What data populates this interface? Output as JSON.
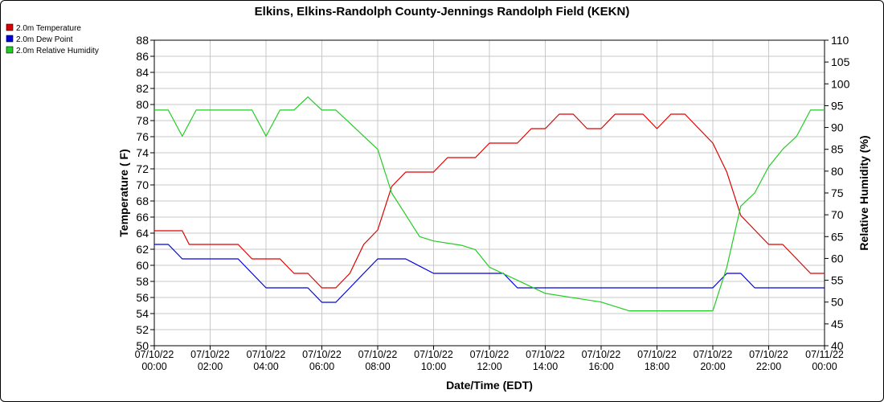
{
  "chart_data": {
    "type": "line",
    "title": "Elkins, Elkins-Randolph County-Jennings Randolph Field (KEKN)",
    "xlabel": "Date/Time (EDT)",
    "ylabel": "Temperature ( F)",
    "y2label": "Relative Humidity (%)",
    "xlim": [
      "07/10/22 00:00",
      "07/11/22 00:00"
    ],
    "ylim": [
      50,
      88
    ],
    "y2lim": [
      40,
      110
    ],
    "yticks": [
      "50",
      "52",
      "54",
      "56",
      "58",
      "60",
      "62",
      "64",
      "66",
      "68",
      "70",
      "72",
      "74",
      "76",
      "78",
      "80",
      "82",
      "84",
      "86",
      "88"
    ],
    "y2ticks": [
      "40",
      "45",
      "50",
      "55",
      "60",
      "65",
      "70",
      "75",
      "80",
      "85",
      "90",
      "95",
      "100",
      "105",
      "110"
    ],
    "xticks": [
      {
        "date": "07/10/22",
        "time": "00:00"
      },
      {
        "date": "07/10/22",
        "time": "02:00"
      },
      {
        "date": "07/10/22",
        "time": "04:00"
      },
      {
        "date": "07/10/22",
        "time": "06:00"
      },
      {
        "date": "07/10/22",
        "time": "08:00"
      },
      {
        "date": "07/10/22",
        "time": "10:00"
      },
      {
        "date": "07/10/22",
        "time": "12:00"
      },
      {
        "date": "07/10/22",
        "time": "14:00"
      },
      {
        "date": "07/10/22",
        "time": "16:00"
      },
      {
        "date": "07/10/22",
        "time": "18:00"
      },
      {
        "date": "07/10/22",
        "time": "20:00"
      },
      {
        "date": "07/10/22",
        "time": "22:00"
      },
      {
        "date": "07/11/22",
        "time": "00:00"
      }
    ],
    "grid": true,
    "legend_position": "top-left",
    "series": [
      {
        "name": "2.0m Temperature",
        "axis": "left",
        "color": "#dd0000",
        "x": [
          "07/10/22 00:00",
          "07/10/22 01:00",
          "07/10/22 01:15",
          "07/10/22 02:00",
          "07/10/22 03:00",
          "07/10/22 03:30",
          "07/10/22 04:00",
          "07/10/22 04:30",
          "07/10/22 05:00",
          "07/10/22 05:30",
          "07/10/22 06:00",
          "07/10/22 06:30",
          "07/10/22 07:00",
          "07/10/22 07:30",
          "07/10/22 08:00",
          "07/10/22 08:30",
          "07/10/22 09:00",
          "07/10/22 09:30",
          "07/10/22 10:00",
          "07/10/22 10:30",
          "07/10/22 11:00",
          "07/10/22 11:30",
          "07/10/22 12:00",
          "07/10/22 12:30",
          "07/10/22 13:00",
          "07/10/22 13:30",
          "07/10/22 14:00",
          "07/10/22 14:30",
          "07/10/22 15:00",
          "07/10/22 15:30",
          "07/10/22 16:00",
          "07/10/22 16:30",
          "07/10/22 17:00",
          "07/10/22 17:30",
          "07/10/22 18:00",
          "07/10/22 18:30",
          "07/10/22 19:00",
          "07/10/22 19:30",
          "07/10/22 20:00",
          "07/10/22 20:30",
          "07/10/22 21:00",
          "07/10/22 21:30",
          "07/10/22 22:00",
          "07/10/22 22:30",
          "07/10/22 23:00",
          "07/10/22 23:30",
          "07/11/22 00:00"
        ],
        "values": [
          64.3,
          64.3,
          62.6,
          62.6,
          62.6,
          60.8,
          60.8,
          60.8,
          59.0,
          59.0,
          57.2,
          57.2,
          59.0,
          62.6,
          64.4,
          69.8,
          71.6,
          71.6,
          71.6,
          73.4,
          73.4,
          73.4,
          75.2,
          75.2,
          75.2,
          77.0,
          77.0,
          78.8,
          78.8,
          77.0,
          77.0,
          78.8,
          78.8,
          78.8,
          77.0,
          78.8,
          78.8,
          77.0,
          75.2,
          71.6,
          66.2,
          64.4,
          62.6,
          62.6,
          60.8,
          59.0,
          59.0
        ]
      },
      {
        "name": "2.0m Dew Point",
        "axis": "left",
        "color": "#0000dd",
        "x": [
          "07/10/22 00:00",
          "07/10/22 00:30",
          "07/10/22 01:00",
          "07/10/22 01:30",
          "07/10/22 02:00",
          "07/10/22 03:00",
          "07/10/22 03:30",
          "07/10/22 04:00",
          "07/10/22 05:00",
          "07/10/22 05:30",
          "07/10/22 06:00",
          "07/10/22 06:30",
          "07/10/22 07:00",
          "07/10/22 07:30",
          "07/10/22 08:00",
          "07/10/22 08:30",
          "07/10/22 09:00",
          "07/10/22 10:00",
          "07/10/22 11:00",
          "07/10/22 12:00",
          "07/10/22 12:30",
          "07/10/22 13:00",
          "07/10/22 14:00",
          "07/10/22 15:00",
          "07/10/22 16:00",
          "07/10/22 17:00",
          "07/10/22 18:00",
          "07/10/22 19:00",
          "07/10/22 19:30",
          "07/10/22 20:00",
          "07/10/22 20:30",
          "07/10/22 21:00",
          "07/10/22 21:30",
          "07/10/22 22:00",
          "07/10/22 23:00",
          "07/11/22 00:00"
        ],
        "values": [
          62.6,
          62.6,
          60.8,
          60.8,
          60.8,
          60.8,
          59.0,
          57.2,
          57.2,
          57.2,
          55.4,
          55.4,
          57.2,
          59.0,
          60.8,
          60.8,
          60.8,
          59.0,
          59.0,
          59.0,
          59.0,
          57.2,
          57.2,
          57.2,
          57.2,
          57.2,
          57.2,
          57.2,
          57.2,
          57.2,
          59.0,
          59.0,
          57.2,
          57.2,
          57.2,
          57.2
        ]
      },
      {
        "name": "2.0m Relative Humidity",
        "axis": "right",
        "color": "#22cc22",
        "x": [
          "07/10/22 00:00",
          "07/10/22 00:30",
          "07/10/22 01:00",
          "07/10/22 01:30",
          "07/10/22 02:00",
          "07/10/22 03:00",
          "07/10/22 03:30",
          "07/10/22 04:00",
          "07/10/22 04:30",
          "07/10/22 05:00",
          "07/10/22 05:30",
          "07/10/22 06:00",
          "07/10/22 06:30",
          "07/10/22 07:00",
          "07/10/22 07:30",
          "07/10/22 08:00",
          "07/10/22 08:30",
          "07/10/22 09:00",
          "07/10/22 09:30",
          "07/10/22 10:00",
          "07/10/22 11:00",
          "07/10/22 11:30",
          "07/10/22 12:00",
          "07/10/22 13:00",
          "07/10/22 14:00",
          "07/10/22 15:00",
          "07/10/22 16:00",
          "07/10/22 17:00",
          "07/10/22 18:00",
          "07/10/22 19:00",
          "07/10/22 19:30",
          "07/10/22 20:00",
          "07/10/22 20:30",
          "07/10/22 21:00",
          "07/10/22 21:30",
          "07/10/22 22:00",
          "07/10/22 22:30",
          "07/10/22 23:00",
          "07/10/22 23:30",
          "07/11/22 00:00"
        ],
        "values": [
          94,
          94,
          88,
          94,
          94,
          94,
          94,
          88,
          94,
          94,
          97,
          94,
          94,
          91,
          88,
          85,
          75,
          70,
          65,
          64,
          63,
          62,
          58,
          55,
          52,
          51,
          50,
          48,
          48,
          48,
          48,
          48,
          58,
          72,
          75,
          81,
          85,
          88,
          94,
          94
        ]
      }
    ]
  }
}
